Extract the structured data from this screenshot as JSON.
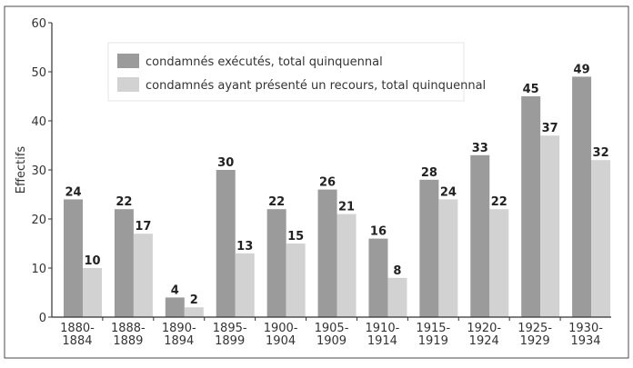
{
  "chart_data": {
    "type": "bar",
    "title": "",
    "xlabel": "",
    "ylabel": "Effectifs",
    "ylim": [
      0,
      60
    ],
    "yticks": [
      0,
      10,
      20,
      30,
      40,
      50,
      60
    ],
    "grid": false,
    "legend_position": "top-left",
    "categories": [
      [
        "1880-",
        "1884"
      ],
      [
        "1888-",
        "1889"
      ],
      [
        "1890-",
        "1894"
      ],
      [
        "1895-",
        "1899"
      ],
      [
        "1900-",
        "1904"
      ],
      [
        "1905-",
        "1909"
      ],
      [
        "1910-",
        "1914"
      ],
      [
        "1915-",
        "1919"
      ],
      [
        "1920-",
        "1924"
      ],
      [
        "1925-",
        "1929"
      ],
      [
        "1930-",
        "1934"
      ]
    ],
    "series": [
      {
        "name": "condamnés exécutés, total quinquennal",
        "color": "#9b9b9b",
        "values": [
          24,
          22,
          4,
          30,
          22,
          26,
          16,
          28,
          33,
          45,
          49
        ]
      },
      {
        "name": "condamnés ayant présenté un recours, total quinquennal",
        "color": "#d2d2d2",
        "values": [
          10,
          17,
          2,
          13,
          15,
          21,
          8,
          24,
          22,
          37,
          32
        ]
      }
    ]
  }
}
